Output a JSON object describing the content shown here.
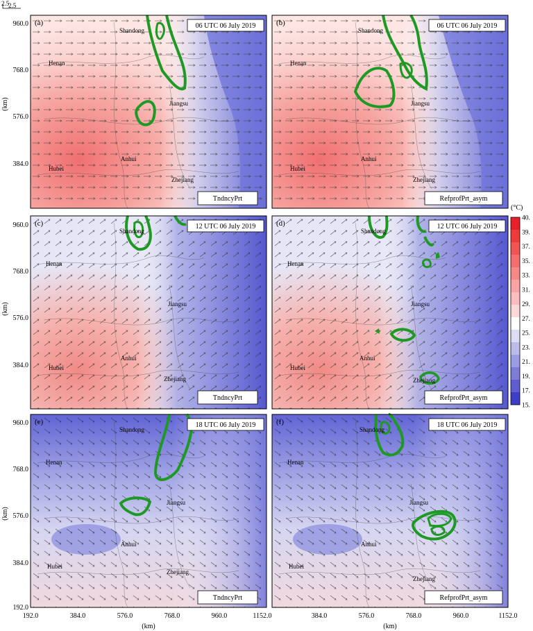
{
  "figure": {
    "ref_vector": {
      "label_top": "2.5",
      "label_side": "2.5"
    },
    "x_axis_label": "(km)",
    "y_axis_label": "(km)",
    "x_ticks": [
      "192.0",
      "384.0",
      "576.0",
      "768.0",
      "960.0",
      "1152.0"
    ],
    "y_ticks": [
      "960.0",
      "768.0",
      "576.0",
      "384.0",
      "192.0"
    ]
  },
  "colorbar": {
    "unit": "(°C)",
    "ticks": [
      "40.",
      "39.",
      "37.",
      "35.",
      "33.",
      "31.",
      "29.",
      "27.",
      "25.",
      "23.",
      "21.",
      "19.",
      "17.",
      "15."
    ],
    "colors": [
      "#e8202a",
      "#ee3a3a",
      "#f25454",
      "#f56e6e",
      "#f78888",
      "#f9a3a3",
      "#fbbdbd",
      "#fdd9d9",
      "#ffffff",
      "#dcdcf3",
      "#bcbceb",
      "#9c9ce2",
      "#7d7dd9",
      "#5e5ed0",
      "#3e3ec7"
    ]
  },
  "places": [
    "Shandong",
    "Henan",
    "Jiangsu",
    "Hubei",
    "Anhui",
    "Zhejiang"
  ],
  "panels": [
    {
      "letter": "(a)",
      "time": "06 UTC 06 July 2019",
      "scheme": "TndncyPrt"
    },
    {
      "letter": "(b)",
      "time": "06 UTC 06 July 2019",
      "scheme": "RefprofPrt_asym"
    },
    {
      "letter": "(c)",
      "time": "12 UTC 06 July 2019",
      "scheme": "TndncyPrt"
    },
    {
      "letter": "(d)",
      "time": "12 UTC 06 July 2019",
      "scheme": "RefprofPrt_asym"
    },
    {
      "letter": "(e)",
      "time": "18 UTC 06 July 2019",
      "scheme": "TndncyPrt"
    },
    {
      "letter": "(f)",
      "time": "18 UTC 06 July 2019",
      "scheme": "RefprofPrt_asym"
    }
  ]
}
